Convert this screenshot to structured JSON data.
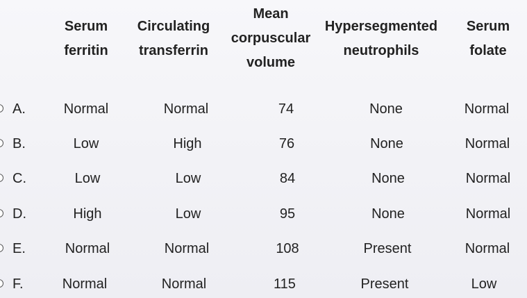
{
  "headers": [
    {
      "lines": [
        "Serum",
        "ferritin"
      ]
    },
    {
      "lines": [
        "Circulating",
        "transferrin"
      ]
    },
    {
      "lines": [
        "Mean",
        "corpuscular",
        "volume"
      ]
    },
    {
      "lines": [
        "Hypersegmented",
        "neutrophils"
      ]
    },
    {
      "lines": [
        "Serum",
        "folate"
      ]
    }
  ],
  "rows": [
    {
      "letter": "A.",
      "cells": [
        "Normal",
        "Normal",
        "74",
        "None",
        "Normal"
      ]
    },
    {
      "letter": "B.",
      "cells": [
        "Low",
        "High",
        "76",
        "None",
        "Normal"
      ]
    },
    {
      "letter": "C.",
      "cells": [
        "Low",
        "Low",
        "84",
        "None",
        "Normal"
      ]
    },
    {
      "letter": "D.",
      "cells": [
        "High",
        "Low",
        "95",
        "None",
        "Normal"
      ]
    },
    {
      "letter": "E.",
      "cells": [
        "Normal",
        "Normal",
        "108",
        "Present",
        "Normal"
      ]
    },
    {
      "letter": "F.",
      "cells": [
        "Normal",
        "Normal",
        "115",
        "Present",
        "Low"
      ]
    }
  ]
}
